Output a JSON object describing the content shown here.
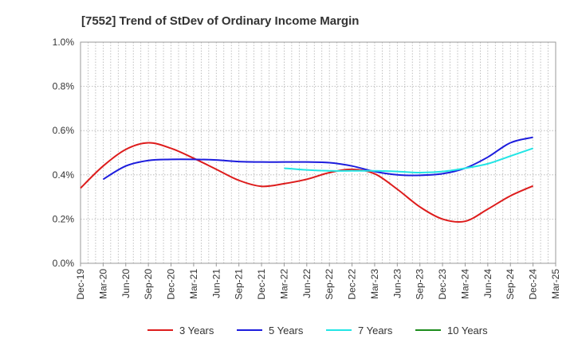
{
  "chart_data": {
    "type": "line",
    "title": "[7552]  Trend of StDev of Ordinary Income Margin",
    "xlabel": "",
    "ylabel": "",
    "x_tick_labels": [
      "Dec-19",
      "Mar-20",
      "Jun-20",
      "Sep-20",
      "Dec-20",
      "Mar-21",
      "Jun-21",
      "Sep-21",
      "Dec-21",
      "Mar-22",
      "Jun-22",
      "Sep-22",
      "Dec-22",
      "Mar-23",
      "Jun-23",
      "Sep-23",
      "Dec-23",
      "Mar-24",
      "Jun-24",
      "Sep-24",
      "Dec-24",
      "Mar-25"
    ],
    "y_tick_labels": [
      "0.0%",
      "0.2%",
      "0.4%",
      "0.6%",
      "0.8%",
      "1.0%"
    ],
    "ylim": [
      0,
      1.0
    ],
    "y_unit": "%",
    "grid": true,
    "legend_position": "bottom",
    "series": [
      {
        "name": "3 Years",
        "color": "#dd1c1c",
        "x": [
          "Dec-19",
          "Mar-20",
          "Jun-20",
          "Sep-20",
          "Dec-20",
          "Mar-21",
          "Jun-21",
          "Sep-21",
          "Dec-21",
          "Mar-22",
          "Jun-22",
          "Sep-22",
          "Dec-22",
          "Mar-23",
          "Jun-23",
          "Sep-23",
          "Dec-23",
          "Mar-24",
          "Jun-24",
          "Sep-24",
          "Dec-24"
        ],
        "values": [
          0.34,
          0.44,
          0.515,
          0.545,
          0.52,
          0.475,
          0.425,
          0.375,
          0.348,
          0.36,
          0.38,
          0.41,
          0.425,
          0.405,
          0.335,
          0.255,
          0.2,
          0.19,
          0.245,
          0.305,
          0.35
        ]
      },
      {
        "name": "5 Years",
        "color": "#1c1cdd",
        "x": [
          "Mar-20",
          "Jun-20",
          "Sep-20",
          "Dec-20",
          "Mar-21",
          "Jun-21",
          "Sep-21",
          "Dec-21",
          "Mar-22",
          "Jun-22",
          "Sep-22",
          "Dec-22",
          "Mar-23",
          "Jun-23",
          "Sep-23",
          "Dec-23",
          "Mar-24",
          "Jun-24",
          "Sep-24",
          "Dec-24"
        ],
        "values": [
          0.38,
          0.44,
          0.465,
          0.47,
          0.47,
          0.467,
          0.46,
          0.458,
          0.458,
          0.458,
          0.455,
          0.44,
          0.415,
          0.4,
          0.398,
          0.405,
          0.43,
          0.48,
          0.545,
          0.57
        ]
      },
      {
        "name": "7 Years",
        "color": "#22e5e5",
        "x": [
          "Mar-22",
          "Jun-22",
          "Sep-22",
          "Dec-22",
          "Mar-23",
          "Jun-23",
          "Sep-23",
          "Dec-23",
          "Mar-24",
          "Jun-24",
          "Sep-24",
          "Dec-24"
        ],
        "values": [
          0.43,
          0.422,
          0.418,
          0.418,
          0.418,
          0.415,
          0.41,
          0.415,
          0.43,
          0.45,
          0.485,
          0.52
        ]
      },
      {
        "name": "10 Years",
        "color": "#1c8c1c",
        "x": [],
        "values": []
      }
    ]
  }
}
